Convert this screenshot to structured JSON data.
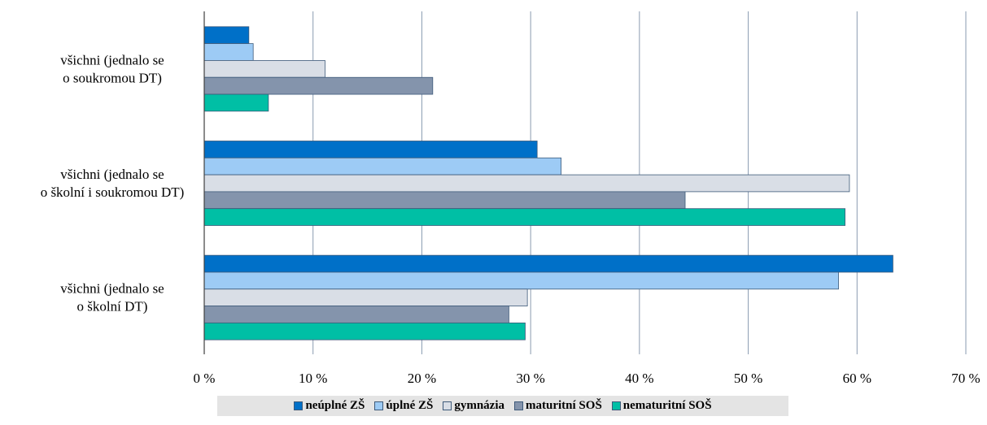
{
  "chart_data": {
    "type": "bar",
    "orientation": "horizontal",
    "categories": [
      [
        "všichni (jednalo se",
        "o soukromou DT)"
      ],
      [
        "všichni (jednalo se",
        "o školní i soukromou DT)"
      ],
      [
        "všichni (jednalo se",
        "o školní DT)"
      ]
    ],
    "series": [
      {
        "name": "neúplné ZŠ",
        "color": "#0070c8",
        "values": [
          4.1,
          30.6,
          63.3
        ]
      },
      {
        "name": "úplné ZŠ",
        "color": "#9dcbf5",
        "values": [
          4.5,
          32.8,
          58.3
        ]
      },
      {
        "name": "gymnázia",
        "color": "#d9dee6",
        "values": [
          11.1,
          59.3,
          29.7
        ]
      },
      {
        "name": "maturitní SOŠ",
        "color": "#8494ac",
        "values": [
          21.0,
          44.2,
          28.0
        ]
      },
      {
        "name": "nematuritní SOŠ",
        "color": "#00bfa5",
        "values": [
          5.9,
          58.9,
          29.5
        ]
      }
    ],
    "x_ticks": [
      "0 %",
      "10 %",
      "20 %",
      "30 %",
      "40 %",
      "50 %",
      "60 %",
      "70 %"
    ],
    "xlim": [
      0,
      70
    ],
    "grid": true,
    "legend_position": "bottom"
  }
}
